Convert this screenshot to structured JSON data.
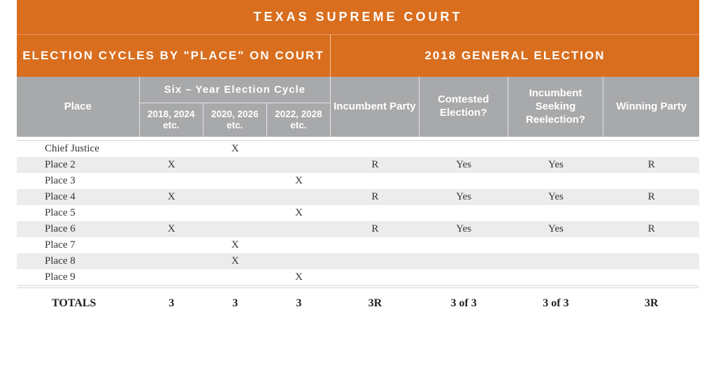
{
  "title": "TEXAS SUPREME COURT",
  "sections": {
    "left": "ELECTION CYCLES BY \"PLACE\" ON COURT",
    "right": "2018 GENERAL ELECTION"
  },
  "headers": {
    "place": "Place",
    "cycle_group": "Six – Year Election Cycle",
    "cycle_a": "2018, 2024 etc.",
    "cycle_b": "2020, 2026 etc.",
    "cycle_c": "2022, 2028 etc.",
    "incumbent": "Incumbent Party",
    "contested": "Contested Election?",
    "seeking": "Incumbent Seeking Reelection?",
    "winning": "Winning Party"
  },
  "rows": [
    {
      "place": "Chief Justice",
      "a": "",
      "b": "X",
      "c": "",
      "inc": "",
      "cont": "",
      "seek": "",
      "win": "",
      "stripe": false
    },
    {
      "place": "Place 2",
      "a": "X",
      "b": "",
      "c": "",
      "inc": "R",
      "cont": "Yes",
      "seek": "Yes",
      "win": "R",
      "stripe": true
    },
    {
      "place": "Place 3",
      "a": "",
      "b": "",
      "c": "X",
      "inc": "",
      "cont": "",
      "seek": "",
      "win": "",
      "stripe": false
    },
    {
      "place": "Place 4",
      "a": "X",
      "b": "",
      "c": "",
      "inc": "R",
      "cont": "Yes",
      "seek": "Yes",
      "win": "R",
      "stripe": true
    },
    {
      "place": "Place 5",
      "a": "",
      "b": "",
      "c": "X",
      "inc": "",
      "cont": "",
      "seek": "",
      "win": "",
      "stripe": false
    },
    {
      "place": "Place 6",
      "a": "X",
      "b": "",
      "c": "",
      "inc": "R",
      "cont": "Yes",
      "seek": "Yes",
      "win": "R",
      "stripe": true
    },
    {
      "place": "Place 7",
      "a": "",
      "b": "X",
      "c": "",
      "inc": "",
      "cont": "",
      "seek": "",
      "win": "",
      "stripe": false
    },
    {
      "place": "Place 8",
      "a": "",
      "b": "X",
      "c": "",
      "inc": "",
      "cont": "",
      "seek": "",
      "win": "",
      "stripe": true
    },
    {
      "place": "Place 9",
      "a": "",
      "b": "",
      "c": "X",
      "inc": "",
      "cont": "",
      "seek": "",
      "win": "",
      "stripe": false
    }
  ],
  "totals": {
    "label": "TOTALS",
    "a": "3",
    "b": "3",
    "c": "3",
    "inc": "3R",
    "cont": "3 of 3",
    "seek": "3 of 3",
    "win": "3R"
  },
  "colors": {
    "orange": "#d96e1e",
    "gray": "#a8a9ab",
    "stripe": "#ececed"
  }
}
